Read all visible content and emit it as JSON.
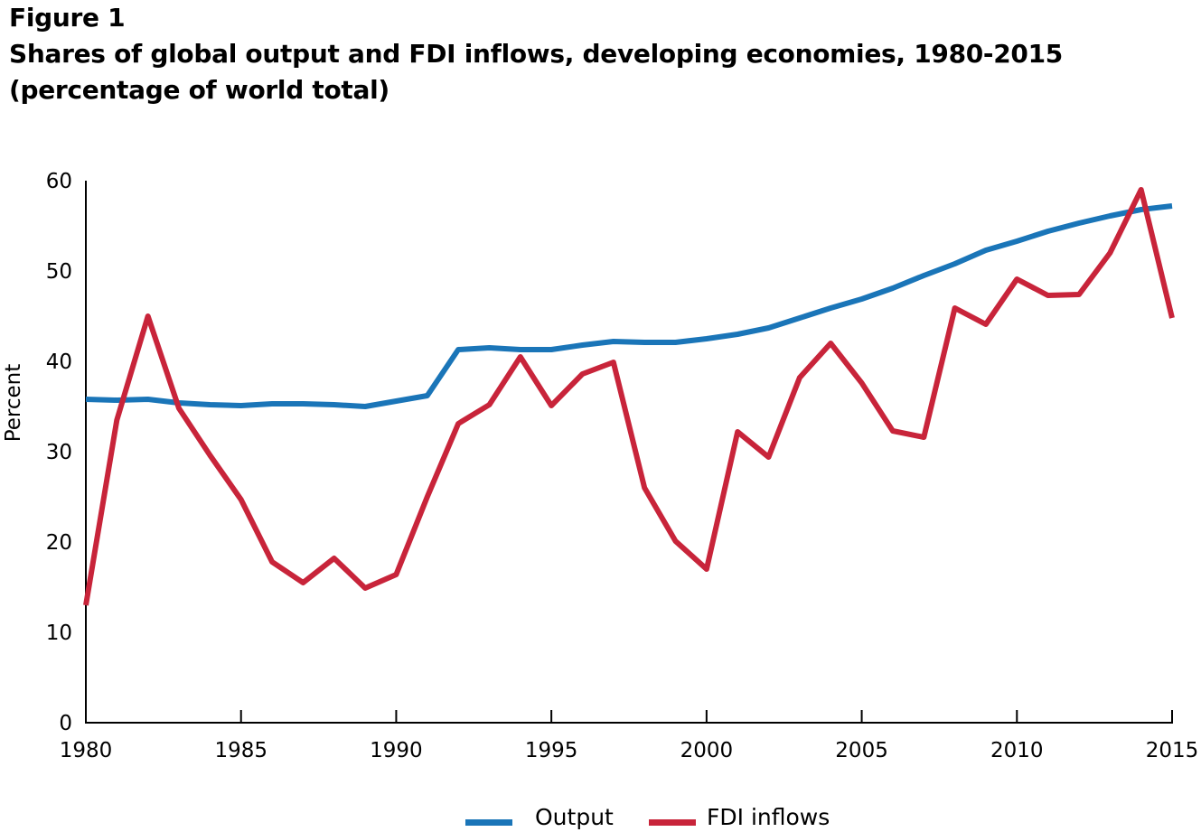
{
  "title": {
    "line1": "Figure 1",
    "line2": "Shares of global output and FDI inflows, developing economies, 1980-2015",
    "line3": "(percentage of world total)"
  },
  "chart_data": {
    "type": "line",
    "ylabel": "Percent",
    "xlabel": "",
    "xlim": [
      1980,
      2015
    ],
    "ylim": [
      0,
      60
    ],
    "x_ticks": [
      1980,
      1985,
      1990,
      1995,
      2000,
      2005,
      2010,
      2015
    ],
    "y_ticks": [
      0,
      10,
      20,
      30,
      40,
      50,
      60
    ],
    "grid": false,
    "legend_position": "bottom",
    "x": [
      1980,
      1981,
      1982,
      1983,
      1984,
      1985,
      1986,
      1987,
      1988,
      1989,
      1990,
      1991,
      1992,
      1993,
      1994,
      1995,
      1996,
      1997,
      1998,
      1999,
      2000,
      2001,
      2002,
      2003,
      2004,
      2005,
      2006,
      2007,
      2008,
      2009,
      2010,
      2011,
      2012,
      2013,
      2014,
      2015
    ],
    "series": [
      {
        "name": "Output",
        "color": "#1a75b8",
        "values": [
          35.8,
          35.7,
          35.8,
          35.4,
          35.2,
          35.1,
          35.3,
          35.3,
          35.2,
          35.0,
          35.6,
          36.2,
          41.3,
          41.5,
          41.3,
          41.3,
          41.8,
          42.2,
          42.1,
          42.1,
          42.5,
          43.0,
          43.7,
          44.8,
          45.9,
          46.9,
          48.1,
          49.5,
          50.8,
          52.3,
          53.3,
          54.4,
          55.3,
          56.1,
          56.8,
          57.2
        ]
      },
      {
        "name": "FDI inflows",
        "color": "#c8243a",
        "values": [
          13.0,
          33.5,
          45.0,
          34.8,
          29.6,
          24.7,
          17.8,
          15.5,
          18.2,
          14.9,
          16.4,
          25.0,
          33.1,
          35.2,
          40.5,
          35.1,
          38.6,
          39.9,
          26.0,
          20.1,
          17.0,
          32.2,
          29.4,
          38.2,
          42.0,
          37.6,
          32.3,
          31.6,
          45.9,
          44.1,
          49.1,
          47.3,
          47.4,
          52.0,
          59.0,
          44.8
        ]
      }
    ]
  }
}
